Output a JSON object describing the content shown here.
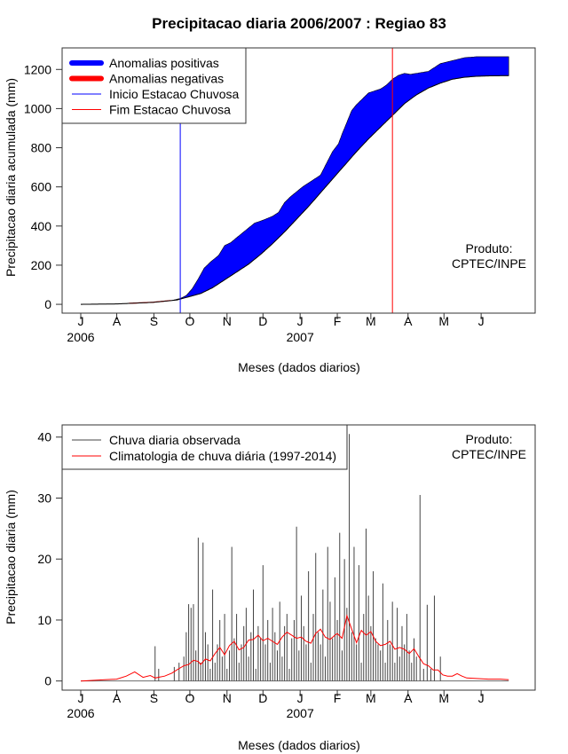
{
  "chart_data": [
    {
      "type": "area",
      "title": "Precipitacao diaria 2006/2007 : Regiao 83",
      "xlabel": "Meses (dados diarios)",
      "ylabel": "Precipitacao diaria acumulada (mm)",
      "ylim": [
        -45,
        1310
      ],
      "yticks": [
        0,
        200,
        400,
        600,
        800,
        1000,
        1200
      ],
      "xlim": [
        0,
        365
      ],
      "month_ticks": [
        {
          "label": "J",
          "day": 0
        },
        {
          "label": "A",
          "day": 30
        },
        {
          "label": "S",
          "day": 61
        },
        {
          "label": "O",
          "day": 91
        },
        {
          "label": "N",
          "day": 122
        },
        {
          "label": "D",
          "day": 152
        },
        {
          "label": "J",
          "day": 183
        },
        {
          "label": "F",
          "day": 214
        },
        {
          "label": "M",
          "day": 242
        },
        {
          "label": "A",
          "day": 273
        },
        {
          "label": "M",
          "day": 303
        },
        {
          "label": "J",
          "day": 334
        }
      ],
      "year_labels": [
        {
          "label": "2006",
          "day": 0
        },
        {
          "label": "2007",
          "day": 183
        }
      ],
      "legend": {
        "position": "top-left",
        "entries": [
          {
            "label": "Anomalias positivas",
            "color": "#0000ff",
            "style": "thick"
          },
          {
            "label": "Anomalias negativas",
            "color": "#ff0000",
            "style": "thick"
          },
          {
            "label": "Inicio Estacao Chuvosa",
            "color": "#0000ff",
            "style": "line"
          },
          {
            "label": "Fim Estacao Chuvosa",
            "color": "#ff0000",
            "style": "line"
          }
        ]
      },
      "annotation": [
        "Produto:",
        "CPTEC/INPE"
      ],
      "rainy_season_start_day": 83,
      "rainy_season_end_day": 260,
      "series": [
        {
          "name": "Anomalias positivas",
          "color": "#0000ff",
          "observed_x": [
            0,
            40,
            60,
            75,
            83,
            88,
            93,
            98,
            103,
            108,
            115,
            120,
            125,
            130,
            138,
            145,
            152,
            160,
            165,
            170,
            175,
            180,
            185,
            190,
            195,
            200,
            205,
            210,
            215,
            218,
            222,
            226,
            230,
            235,
            240,
            245,
            250,
            255,
            260,
            265,
            270,
            275,
            280,
            285,
            290,
            300,
            310,
            320,
            330,
            340,
            350,
            357
          ],
          "observed_y": [
            0,
            0,
            8,
            18,
            30,
            45,
            80,
            130,
            185,
            215,
            250,
            300,
            315,
            340,
            380,
            415,
            430,
            450,
            470,
            520,
            550,
            575,
            600,
            620,
            640,
            660,
            720,
            780,
            820,
            870,
            930,
            990,
            1020,
            1050,
            1080,
            1090,
            1100,
            1120,
            1150,
            1170,
            1180,
            1175,
            1180,
            1185,
            1190,
            1230,
            1245,
            1260,
            1265,
            1265,
            1265,
            1265
          ],
          "climatology_x": [
            0,
            30,
            60,
            80,
            91,
            100,
            110,
            120,
            130,
            140,
            150,
            160,
            170,
            180,
            190,
            200,
            210,
            220,
            230,
            240,
            250,
            260,
            270,
            280,
            290,
            300,
            310,
            320,
            330,
            340,
            350,
            357
          ],
          "climatology_y": [
            0,
            2,
            10,
            22,
            40,
            55,
            85,
            125,
            165,
            205,
            255,
            310,
            370,
            435,
            500,
            570,
            640,
            710,
            780,
            845,
            905,
            965,
            1025,
            1070,
            1105,
            1130,
            1150,
            1160,
            1165,
            1167,
            1168,
            1168
          ]
        }
      ]
    },
    {
      "type": "bar",
      "xlabel": "Meses (dados diarios)",
      "ylabel": "Precipitacao diaria (mm)",
      "ylim": [
        -1.5,
        42
      ],
      "yticks": [
        0,
        10,
        20,
        30,
        40
      ],
      "xlim": [
        0,
        365
      ],
      "month_ticks": [
        {
          "label": "J",
          "day": 0
        },
        {
          "label": "A",
          "day": 30
        },
        {
          "label": "S",
          "day": 61
        },
        {
          "label": "O",
          "day": 91
        },
        {
          "label": "N",
          "day": 122
        },
        {
          "label": "D",
          "day": 152
        },
        {
          "label": "J",
          "day": 183
        },
        {
          "label": "F",
          "day": 214
        },
        {
          "label": "M",
          "day": 242
        },
        {
          "label": "A",
          "day": 273
        },
        {
          "label": "M",
          "day": 303
        },
        {
          "label": "J",
          "day": 334
        }
      ],
      "year_labels": [
        {
          "label": "2006",
          "day": 0
        },
        {
          "label": "2007",
          "day": 183
        }
      ],
      "legend": {
        "position": "top-left",
        "entries": [
          {
            "label": "Chuva diaria observada",
            "color": "#444444",
            "style": "line"
          },
          {
            "label": "Climatologia de chuva diária (1997-2014)",
            "color": "#ff0000",
            "style": "line"
          }
        ]
      },
      "annotation": [
        "Produto:",
        "CPTEC/INPE"
      ],
      "series": [
        {
          "name": "Chuva diaria observada",
          "color": "#444444",
          "days": [
            62,
            65,
            78,
            82,
            86,
            88,
            90,
            92,
            94,
            96,
            98,
            100,
            102,
            104,
            106,
            108,
            110,
            112,
            114,
            116,
            118,
            120,
            122,
            124,
            126,
            128,
            130,
            132,
            134,
            136,
            138,
            140,
            142,
            144,
            146,
            148,
            150,
            152,
            154,
            156,
            158,
            160,
            162,
            164,
            166,
            168,
            170,
            172,
            174,
            176,
            178,
            180,
            182,
            184,
            186,
            188,
            190,
            192,
            194,
            196,
            198,
            200,
            202,
            204,
            206,
            208,
            210,
            212,
            214,
            216,
            218,
            220,
            222,
            224,
            226,
            228,
            230,
            232,
            234,
            236,
            238,
            240,
            242,
            244,
            246,
            248,
            250,
            252,
            254,
            256,
            258,
            260,
            262,
            264,
            266,
            268,
            270,
            272,
            274,
            276,
            278,
            280,
            283,
            286,
            289,
            292,
            295,
            300
          ],
          "values": [
            5.7,
            2,
            2.3,
            3,
            4,
            8,
            12.6,
            12,
            12.6,
            5,
            23.5,
            3,
            22.7,
            8,
            6,
            2,
            15,
            3,
            6,
            10,
            4,
            11,
            2,
            5,
            22,
            7,
            11,
            3,
            6,
            9,
            12,
            4,
            8,
            15,
            2,
            9,
            7,
            19,
            6,
            10,
            3,
            12,
            8,
            5,
            13,
            4,
            9,
            11,
            2,
            7,
            10,
            25.3,
            5,
            14,
            9,
            6,
            18,
            3,
            11,
            21,
            8,
            6,
            15,
            4,
            22,
            13,
            7,
            17,
            10,
            24.3,
            5,
            20,
            12,
            40.5,
            8,
            22,
            6,
            19,
            3,
            11,
            25,
            14,
            9,
            18,
            7,
            6,
            5,
            16,
            3,
            10,
            6,
            13,
            3,
            12,
            4,
            9,
            6,
            11,
            5,
            3,
            7,
            4,
            30.5,
            2,
            12.5,
            2,
            14,
            4
          ]
        },
        {
          "name": "Climatologia de chuva diária (1997-2014)",
          "color": "#ff0000",
          "x": [
            0,
            10,
            20,
            30,
            38,
            45,
            52,
            58,
            62,
            70,
            76,
            80,
            86,
            90,
            94,
            98,
            100,
            104,
            108,
            112,
            116,
            120,
            124,
            128,
            132,
            136,
            140,
            144,
            148,
            152,
            156,
            160,
            164,
            168,
            172,
            176,
            180,
            184,
            188,
            192,
            196,
            200,
            204,
            208,
            212,
            214,
            218,
            222,
            226,
            230,
            234,
            238,
            242,
            246,
            250,
            254,
            258,
            262,
            266,
            270,
            274,
            278,
            282,
            286,
            290,
            294,
            298,
            302,
            306,
            310,
            314,
            318,
            322,
            330,
            340,
            350,
            357
          ],
          "y": [
            0,
            0.1,
            0.2,
            0.3,
            0.8,
            1.5,
            0.6,
            0.9,
            0.5,
            0.8,
            1.3,
            1.8,
            2.5,
            2.7,
            3.4,
            3.2,
            2.7,
            3.6,
            3.3,
            4.5,
            5.5,
            4.3,
            5.8,
            6.5,
            5.1,
            5.5,
            6.7,
            6.8,
            7.5,
            6.6,
            7.0,
            6.5,
            6.0,
            7.2,
            8.0,
            7.5,
            7.0,
            7.2,
            6.5,
            6.2,
            7.8,
            8.5,
            7.2,
            6.8,
            7.5,
            7.8,
            7.0,
            10.7,
            8.5,
            6.3,
            8.3,
            7.5,
            8.1,
            6.5,
            5.8,
            6.0,
            6.5,
            5.2,
            5.5,
            5.2,
            4.5,
            5.3,
            4.0,
            2.8,
            2.5,
            1.8,
            1.8,
            1.0,
            0.8,
            0.8,
            1.2,
            0.8,
            0.5,
            0.4,
            0.3,
            0.3,
            0.2
          ]
        }
      ]
    }
  ]
}
